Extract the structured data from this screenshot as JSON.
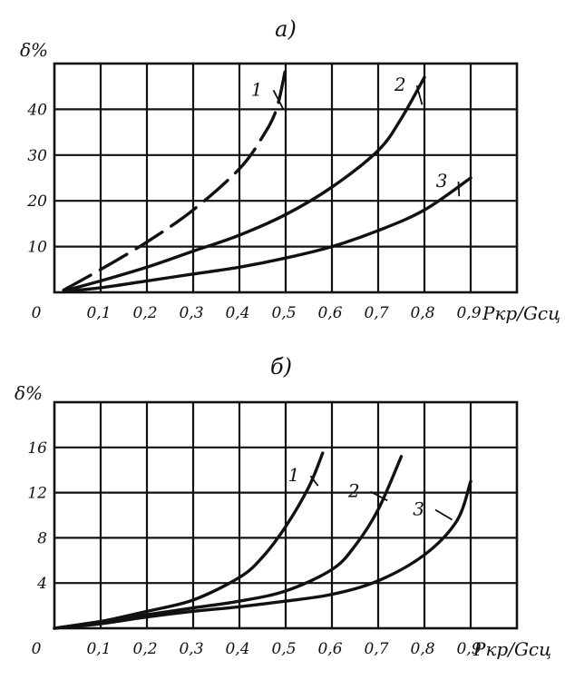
{
  "chart_data": [
    {
      "type": "line",
      "title": "а)",
      "xlabel": "Pкр/Gсц",
      "ylabel": "δ%",
      "xlim": [
        0,
        1.0
      ],
      "ylim": [
        0,
        50
      ],
      "x_ticks": [
        "0",
        "0,1",
        "0,2",
        "0,3",
        "0,4",
        "0,5",
        "0,6",
        "0,7",
        "0,8",
        "0,9"
      ],
      "y_ticks": [
        "10",
        "20",
        "30",
        "40"
      ],
      "grid": true,
      "series": [
        {
          "name": "1",
          "x": [
            0.02,
            0.1,
            0.2,
            0.3,
            0.4,
            0.45,
            0.48,
            0.5
          ],
          "y": [
            0.5,
            5,
            11,
            18,
            27,
            34,
            40,
            49
          ]
        },
        {
          "name": "2",
          "x": [
            0.02,
            0.1,
            0.2,
            0.3,
            0.4,
            0.5,
            0.6,
            0.7,
            0.75,
            0.8
          ],
          "y": [
            0.3,
            2.5,
            5.5,
            9,
            12.5,
            17,
            23,
            31,
            38,
            47
          ]
        },
        {
          "name": "3",
          "x": [
            0.02,
            0.1,
            0.2,
            0.3,
            0.4,
            0.5,
            0.6,
            0.7,
            0.8,
            0.9
          ],
          "y": [
            0.2,
            1,
            2.5,
            4,
            5.5,
            7.5,
            10,
            13.5,
            18,
            25
          ]
        }
      ]
    },
    {
      "type": "line",
      "title": "б)",
      "xlabel": "Pкр/Gсц",
      "ylabel": "δ%",
      "xlim": [
        0,
        1.0
      ],
      "ylim": [
        0,
        20
      ],
      "x_ticks": [
        "0",
        "0,1",
        "0,2",
        "0,3",
        "0,4",
        "0,5",
        "0,6",
        "0,7",
        "0,8",
        "0,9"
      ],
      "y_ticks": [
        "4",
        "8",
        "12",
        "16"
      ],
      "grid": true,
      "series": [
        {
          "name": "1",
          "x": [
            0,
            0.1,
            0.2,
            0.3,
            0.4,
            0.45,
            0.5,
            0.55,
            0.58
          ],
          "y": [
            0,
            0.6,
            1.5,
            2.5,
            4.5,
            6.3,
            9,
            12.5,
            15.5
          ]
        },
        {
          "name": "2",
          "x": [
            0,
            0.1,
            0.2,
            0.3,
            0.4,
            0.5,
            0.6,
            0.65,
            0.7,
            0.75
          ],
          "y": [
            0,
            0.6,
            1.2,
            1.8,
            2.4,
            3.3,
            5.2,
            7.3,
            10.5,
            15.2
          ]
        },
        {
          "name": "3",
          "x": [
            0,
            0.1,
            0.2,
            0.3,
            0.4,
            0.5,
            0.6,
            0.7,
            0.8,
            0.87,
            0.9
          ],
          "y": [
            0,
            0.4,
            1,
            1.5,
            1.9,
            2.4,
            3,
            4.2,
            6.5,
            9.5,
            13
          ]
        }
      ]
    }
  ]
}
